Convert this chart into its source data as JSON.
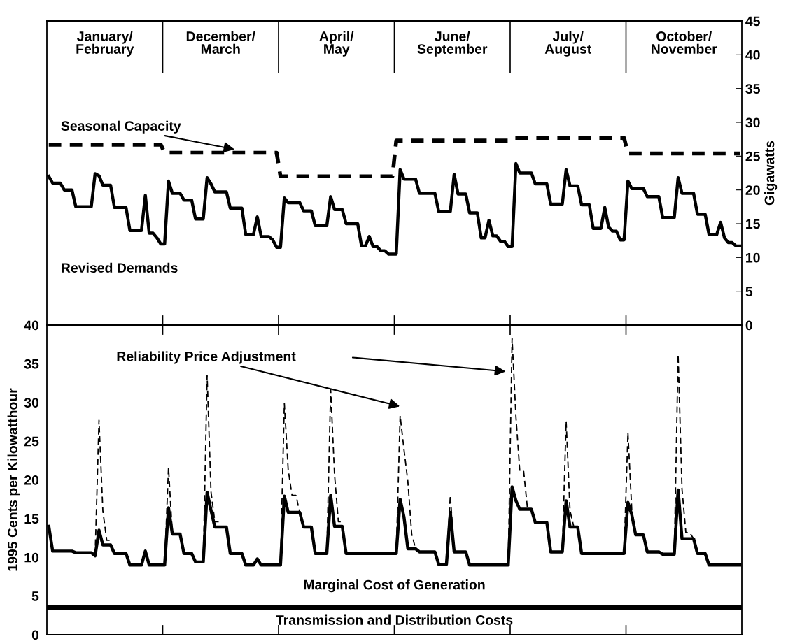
{
  "chart_data": [
    {
      "type": "line",
      "tick_labels": "y",
      "ylim": [
        0,
        45
      ],
      "yticks": [
        0,
        5,
        10,
        15,
        20,
        25,
        30,
        35,
        40,
        45
      ],
      "ylabel": "Gigawatts",
      "annotations": [
        "January/\nFebruary",
        "December/\nMarch",
        "April/\nMay",
        "June/\nSeptember",
        "July/\nAugust",
        "October/\nNovember"
      ],
      "categories": [
        null,
        null,
        null,
        null,
        null,
        null,
        null,
        null,
        null,
        null,
        null,
        null,
        null,
        null,
        null,
        null,
        null,
        null,
        null,
        null,
        null,
        null,
        null,
        null,
        null,
        null,
        null,
        null,
        null,
        null,
        null,
        null,
        null,
        null,
        null,
        null,
        null,
        null,
        null,
        null,
        null,
        null,
        null,
        null,
        null,
        null,
        null,
        null,
        null,
        null,
        null,
        null,
        null,
        null,
        null,
        null,
        null,
        null,
        null,
        null,
        null,
        null,
        null,
        null,
        null,
        null,
        null,
        null,
        null,
        null,
        null,
        null,
        null,
        null,
        null,
        null,
        null,
        null,
        null,
        null,
        null,
        null,
        null,
        null,
        null,
        null,
        null,
        null,
        null,
        null,
        null,
        null,
        null,
        null,
        null,
        null,
        null,
        null,
        null,
        null,
        null,
        null,
        null,
        null,
        null,
        null,
        null,
        null,
        null,
        null,
        null,
        null,
        null,
        null,
        null,
        null,
        null,
        null,
        null,
        null,
        null,
        null,
        null,
        null,
        null,
        null,
        null,
        null,
        null,
        null,
        null,
        null,
        null,
        null,
        null,
        null,
        null,
        null,
        null,
        null,
        null,
        null,
        null,
        null,
        null,
        null,
        null,
        null,
        null,
        null,
        null,
        null,
        null,
        null,
        null,
        null,
        null,
        null,
        null,
        null,
        null,
        null,
        null,
        null,
        null,
        null,
        null,
        null,
        null,
        null,
        null,
        null,
        null,
        null,
        null,
        null,
        null,
        null,
        null,
        null
      ],
      "series": [
        {
          "name": "Seasonal Capacity",
          "color": "#000000",
          "line_style": "dashed",
          "values": [
            26.7,
            26.7,
            26.7,
            26.7,
            26.7,
            26.7,
            26.7,
            26.7,
            26.7,
            26.7,
            26.7,
            26.7,
            26.7,
            26.7,
            26.7,
            26.7,
            26.7,
            26.7,
            26.7,
            26.7,
            26.7,
            26.7,
            26.7,
            26.7,
            26.7,
            26.7,
            26.7,
            26.7,
            26.7,
            26.7,
            25.5,
            25.5,
            25.5,
            25.5,
            25.5,
            25.5,
            25.5,
            25.5,
            25.5,
            25.5,
            25.5,
            25.5,
            25.5,
            25.5,
            25.5,
            25.5,
            25.5,
            25.5,
            25.5,
            25.5,
            25.5,
            25.5,
            25.5,
            25.5,
            25.5,
            25.5,
            25.5,
            25.5,
            25.5,
            25.5,
            22.0,
            22.0,
            22.0,
            22.0,
            22.0,
            22.0,
            22.0,
            22.0,
            22.0,
            22.0,
            22.0,
            22.0,
            22.0,
            22.0,
            22.0,
            22.0,
            22.0,
            22.0,
            22.0,
            22.0,
            22.0,
            22.0,
            22.0,
            22.0,
            22.0,
            22.0,
            22.0,
            22.0,
            22.0,
            22.0,
            27.3,
            27.3,
            27.3,
            27.3,
            27.3,
            27.3,
            27.3,
            27.3,
            27.3,
            27.3,
            27.3,
            27.3,
            27.3,
            27.3,
            27.3,
            27.3,
            27.3,
            27.3,
            27.3,
            27.3,
            27.3,
            27.3,
            27.3,
            27.3,
            27.3,
            27.3,
            27.3,
            27.3,
            27.3,
            27.3,
            27.7,
            27.7,
            27.7,
            27.7,
            27.7,
            27.7,
            27.7,
            27.7,
            27.7,
            27.7,
            27.7,
            27.7,
            27.7,
            27.7,
            27.7,
            27.7,
            27.7,
            27.7,
            27.7,
            27.7,
            27.7,
            27.7,
            27.7,
            27.7,
            27.7,
            27.7,
            27.7,
            27.7,
            27.7,
            27.7,
            25.4,
            25.4,
            25.4,
            25.4,
            25.4,
            25.4,
            25.4,
            25.4,
            25.4,
            25.4,
            25.4,
            25.4,
            25.4,
            25.4,
            25.4,
            25.4,
            25.4,
            25.4,
            25.4,
            25.4,
            25.4,
            25.4,
            25.4,
            25.4,
            25.4,
            25.4,
            25.4,
            25.4,
            25.4,
            25.4
          ]
        },
        {
          "name": "Revised Demands",
          "color": "#000000",
          "line_style": "solid",
          "values": [
            22.0,
            21.0,
            21.0,
            21.0,
            20.0,
            20.0,
            20.0,
            17.5,
            17.5,
            17.5,
            17.5,
            17.5,
            22.4,
            22.1,
            20.7,
            20.7,
            20.7,
            17.4,
            17.4,
            17.4,
            17.4,
            14.0,
            14.0,
            14.0,
            14.0,
            19.2,
            13.6,
            13.6,
            12.9,
            12.0,
            12.0,
            21.3,
            19.5,
            19.5,
            19.5,
            18.5,
            18.5,
            18.5,
            15.7,
            15.7,
            15.7,
            21.8,
            20.9,
            19.7,
            19.7,
            19.7,
            19.7,
            17.3,
            17.3,
            17.3,
            17.3,
            13.4,
            13.4,
            13.4,
            16.0,
            13.1,
            13.1,
            13.1,
            12.6,
            11.5,
            11.5,
            18.8,
            18.1,
            18.1,
            18.1,
            18.1,
            16.9,
            16.9,
            16.9,
            14.7,
            14.7,
            14.7,
            14.7,
            19.0,
            17.1,
            17.1,
            17.1,
            15.0,
            15.0,
            15.0,
            15.0,
            11.7,
            11.7,
            13.1,
            11.6,
            11.6,
            11.0,
            11.0,
            10.5,
            10.5,
            10.5,
            23.0,
            21.6,
            21.6,
            21.6,
            21.6,
            19.5,
            19.5,
            19.5,
            19.5,
            19.5,
            16.8,
            16.8,
            16.8,
            16.8,
            22.3,
            19.4,
            19.4,
            19.4,
            16.6,
            16.6,
            16.6,
            12.9,
            12.9,
            15.5,
            13.2,
            13.2,
            12.4,
            12.4,
            11.6,
            11.6,
            23.9,
            22.5,
            22.5,
            22.5,
            22.5,
            20.9,
            20.9,
            20.9,
            20.9,
            17.9,
            17.9,
            17.9,
            17.9,
            23.0,
            20.6,
            20.6,
            20.6,
            17.8,
            17.8,
            17.8,
            14.3,
            14.3,
            14.3,
            17.4,
            14.5,
            13.9,
            13.9,
            12.6,
            12.6,
            21.3,
            20.2,
            20.2,
            20.2,
            20.2,
            19.0,
            19.0,
            19.0,
            19.0,
            15.9,
            15.9,
            15.9,
            15.9,
            21.8,
            19.5,
            19.5,
            19.5,
            19.5,
            16.4,
            16.4,
            16.4,
            13.4,
            13.4,
            13.4,
            15.2,
            12.9,
            12.2,
            12.2,
            11.7,
            11.7
          ]
        }
      ]
    },
    {
      "type": "line",
      "tick_labels": "y",
      "ylim": [
        0,
        40
      ],
      "yticks": [
        0,
        5,
        10,
        15,
        20,
        25,
        30,
        35,
        40
      ],
      "ylabel": "1995 Cents per Kilowatthour",
      "ref_lines": [
        {
          "axis": "y",
          "value": 3.5,
          "label": "Transmission and Distribution Costs",
          "color": "#000000"
        }
      ],
      "categories": [
        null,
        null,
        null,
        null,
        null,
        null,
        null,
        null,
        null,
        null,
        null,
        null,
        null,
        null,
        null,
        null,
        null,
        null,
        null,
        null,
        null,
        null,
        null,
        null,
        null,
        null,
        null,
        null,
        null,
        null,
        null,
        null,
        null,
        null,
        null,
        null,
        null,
        null,
        null,
        null,
        null,
        null,
        null,
        null,
        null,
        null,
        null,
        null,
        null,
        null,
        null,
        null,
        null,
        null,
        null,
        null,
        null,
        null,
        null,
        null,
        null,
        null,
        null,
        null,
        null,
        null,
        null,
        null,
        null,
        null,
        null,
        null,
        null,
        null,
        null,
        null,
        null,
        null,
        null,
        null,
        null,
        null,
        null,
        null,
        null,
        null,
        null,
        null,
        null,
        null,
        null,
        null,
        null,
        null,
        null,
        null,
        null,
        null,
        null,
        null,
        null,
        null,
        null,
        null,
        null,
        null,
        null,
        null,
        null,
        null,
        null,
        null,
        null,
        null,
        null,
        null,
        null,
        null,
        null,
        null,
        null,
        null,
        null,
        null,
        null,
        null,
        null,
        null,
        null,
        null,
        null,
        null,
        null,
        null,
        null,
        null,
        null,
        null,
        null,
        null,
        null,
        null,
        null,
        null,
        null,
        null,
        null,
        null,
        null,
        null,
        null,
        null,
        null,
        null,
        null,
        null,
        null,
        null,
        null,
        null,
        null,
        null,
        null,
        null,
        null,
        null,
        null,
        null,
        null,
        null,
        null,
        null,
        null,
        null,
        null,
        null,
        null,
        null,
        null,
        null
      ],
      "series": [
        {
          "name": "Reliability Price Adjustment",
          "color": "#000000",
          "line_style": "dashed",
          "values": [
            null,
            null,
            null,
            null,
            null,
            null,
            null,
            null,
            null,
            null,
            null,
            null,
            10.2,
            27.7,
            16.0,
            12.2,
            12.2,
            null,
            null,
            null,
            null,
            null,
            null,
            null,
            null,
            null,
            null,
            null,
            null,
            null,
            9.0,
            21.6,
            13.0,
            null,
            null,
            null,
            null,
            null,
            null,
            null,
            9.4,
            33.5,
            18.5,
            14.6,
            14.6,
            null,
            null,
            null,
            null,
            null,
            null,
            null,
            null,
            null,
            null,
            null,
            null,
            null,
            null,
            null,
            9.0,
            29.9,
            21.3,
            18.0,
            18.0,
            15.8,
            null,
            null,
            null,
            null,
            null,
            null,
            10.5,
            31.7,
            20.7,
            14.6,
            14.6,
            null,
            null,
            null,
            null,
            null,
            null,
            null,
            null,
            null,
            null,
            null,
            null,
            null,
            10.5,
            28.3,
            23.9,
            19.8,
            13.0,
            11.1,
            null,
            null,
            null,
            null,
            null,
            null,
            null,
            9.1,
            18.0,
            10.7,
            null,
            null,
            null,
            null,
            null,
            null,
            null,
            null,
            null,
            null,
            null,
            null,
            null,
            9.0,
            38.3,
            28.1,
            21.1,
            21.1,
            16.2,
            null,
            null,
            null,
            null,
            null,
            null,
            null,
            null,
            10.7,
            27.6,
            16.0,
            13.9,
            null,
            null,
            null,
            null,
            null,
            null,
            null,
            null,
            null,
            null,
            null,
            null,
            10.5,
            26.1,
            16.1,
            12.9,
            null,
            null,
            null,
            null,
            null,
            null,
            null,
            null,
            null,
            10.4,
            36.2,
            18.8,
            13.2,
            13.2,
            12.4,
            null,
            null,
            null,
            null,
            null,
            null,
            null,
            null,
            null,
            null,
            null,
            null
          ]
        },
        {
          "name": "Marginal Cost of Generation",
          "color": "#000000",
          "line_style": "solid",
          "values": [
            14.0,
            10.8,
            10.8,
            10.8,
            10.8,
            10.8,
            10.8,
            10.6,
            10.6,
            10.6,
            10.6,
            10.6,
            10.2,
            13.5,
            11.6,
            11.6,
            11.6,
            10.5,
            10.5,
            10.5,
            10.5,
            9.0,
            9.0,
            9.0,
            9.0,
            10.8,
            9.0,
            9.0,
            9.0,
            9.0,
            9.0,
            16.4,
            13.0,
            13.0,
            13.0,
            10.5,
            10.5,
            10.5,
            9.4,
            9.4,
            9.4,
            18.4,
            16.1,
            13.9,
            13.9,
            13.9,
            13.9,
            10.5,
            10.5,
            10.5,
            10.5,
            9.0,
            9.0,
            9.0,
            9.8,
            9.0,
            9.0,
            9.0,
            9.0,
            9.0,
            9.0,
            17.9,
            15.8,
            15.8,
            15.8,
            15.8,
            13.9,
            13.9,
            13.9,
            10.5,
            10.5,
            10.5,
            10.5,
            18.0,
            14.0,
            14.0,
            14.0,
            10.5,
            10.5,
            10.5,
            10.5,
            10.5,
            10.5,
            10.5,
            10.5,
            10.5,
            10.5,
            10.5,
            10.5,
            10.5,
            10.5,
            17.5,
            15.2,
            11.1,
            11.1,
            11.1,
            10.7,
            10.7,
            10.7,
            10.7,
            10.7,
            9.1,
            9.1,
            9.1,
            15.8,
            10.7,
            10.7,
            10.7,
            10.7,
            9.0,
            9.0,
            9.0,
            9.0,
            9.0,
            9.0,
            9.0,
            9.0,
            9.0,
            9.0,
            9.0,
            19.1,
            17.3,
            16.2,
            16.2,
            16.2,
            16.2,
            14.5,
            14.5,
            14.5,
            14.5,
            10.7,
            10.7,
            10.7,
            10.7,
            17.3,
            13.9,
            13.9,
            13.9,
            10.5,
            10.5,
            10.5,
            10.5,
            10.5,
            10.5,
            10.5,
            10.5,
            10.5,
            10.5,
            10.5,
            10.5,
            17.1,
            15.5,
            12.9,
            12.9,
            12.9,
            10.7,
            10.7,
            10.7,
            10.7,
            10.4,
            10.4,
            10.4,
            10.4,
            18.7,
            12.4,
            12.4,
            12.4,
            12.4,
            10.5,
            10.5,
            10.5,
            9.0,
            9.0,
            9.0,
            9.0,
            9.0,
            9.0,
            9.0,
            9.0,
            9.0
          ]
        }
      ]
    }
  ]
}
